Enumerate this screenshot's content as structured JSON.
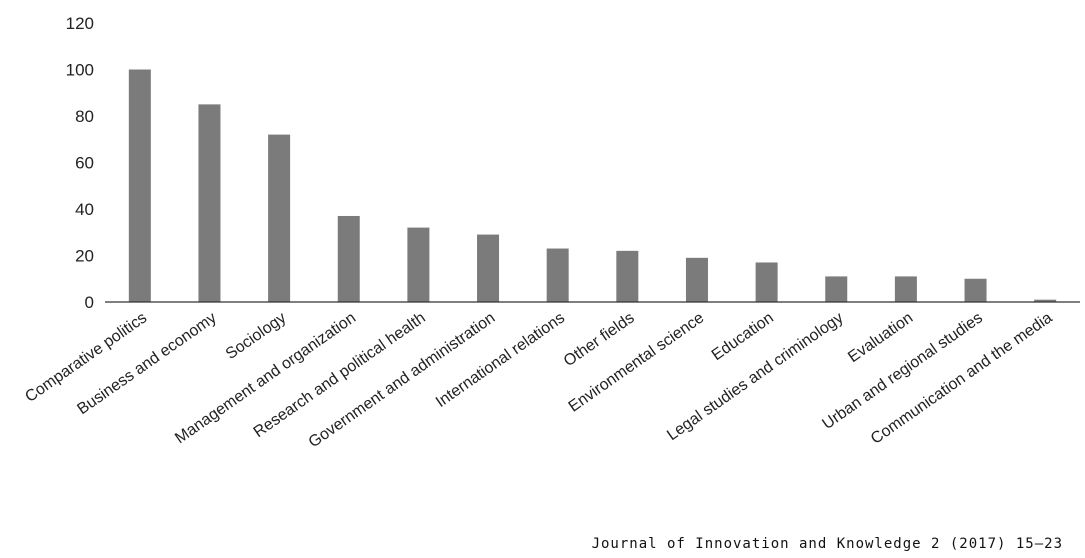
{
  "chart_data": {
    "type": "bar",
    "categories": [
      "Comparative politics",
      "Business and economy",
      "Sociology",
      "Management and organization",
      "Research and political health",
      "Government and administration",
      "International relations",
      "Other fields",
      "Environmental science",
      "Education",
      "Legal studies and criminology",
      "Evaluation",
      "Urban and regional studies",
      "Communication and the media"
    ],
    "values": [
      100,
      85,
      72,
      37,
      32,
      29,
      23,
      22,
      19,
      17,
      11,
      11,
      10,
      1
    ],
    "yticks": [
      "0",
      "20",
      "40",
      "60",
      "80",
      "100",
      "120"
    ],
    "ylim": [
      0,
      120
    ],
    "grid": false,
    "bar_color": "#7b7b7b",
    "axis_color": "#333333"
  },
  "citation": "Journal of Innovation and Knowledge 2 (2017) 15–23"
}
